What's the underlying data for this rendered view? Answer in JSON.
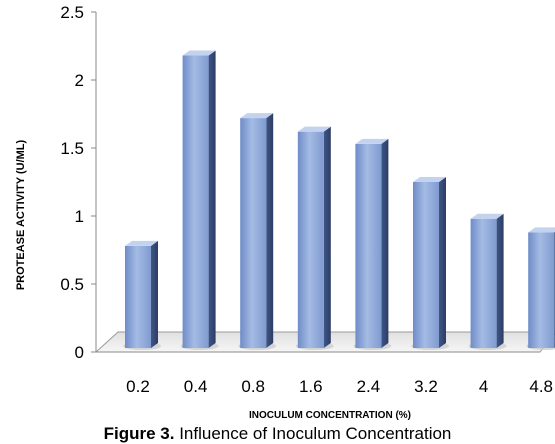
{
  "chart_data": {
    "type": "bar",
    "categories": [
      "0.2",
      "0.4",
      "0.8",
      "1.6",
      "2.4",
      "3.2",
      "4",
      "4.8"
    ],
    "values": [
      0.78,
      2.18,
      1.72,
      1.62,
      1.53,
      1.25,
      0.98,
      0.88
    ],
    "ylabel": "PROTEASE ACTIVITY (U/ML)",
    "xlabel": "INOCULUM CONCENTRATION (%)",
    "ylim": [
      0,
      2.5
    ],
    "yticks": [
      "0",
      "0.5",
      "1",
      "1.5",
      "2",
      "2.5"
    ],
    "grid": false,
    "bar_color": "#8fa9d8",
    "bar_dark_color": "#4a6396"
  },
  "caption": {
    "prefix": "Figure 3.",
    "text": " Influence of Inoculum Concentration"
  }
}
